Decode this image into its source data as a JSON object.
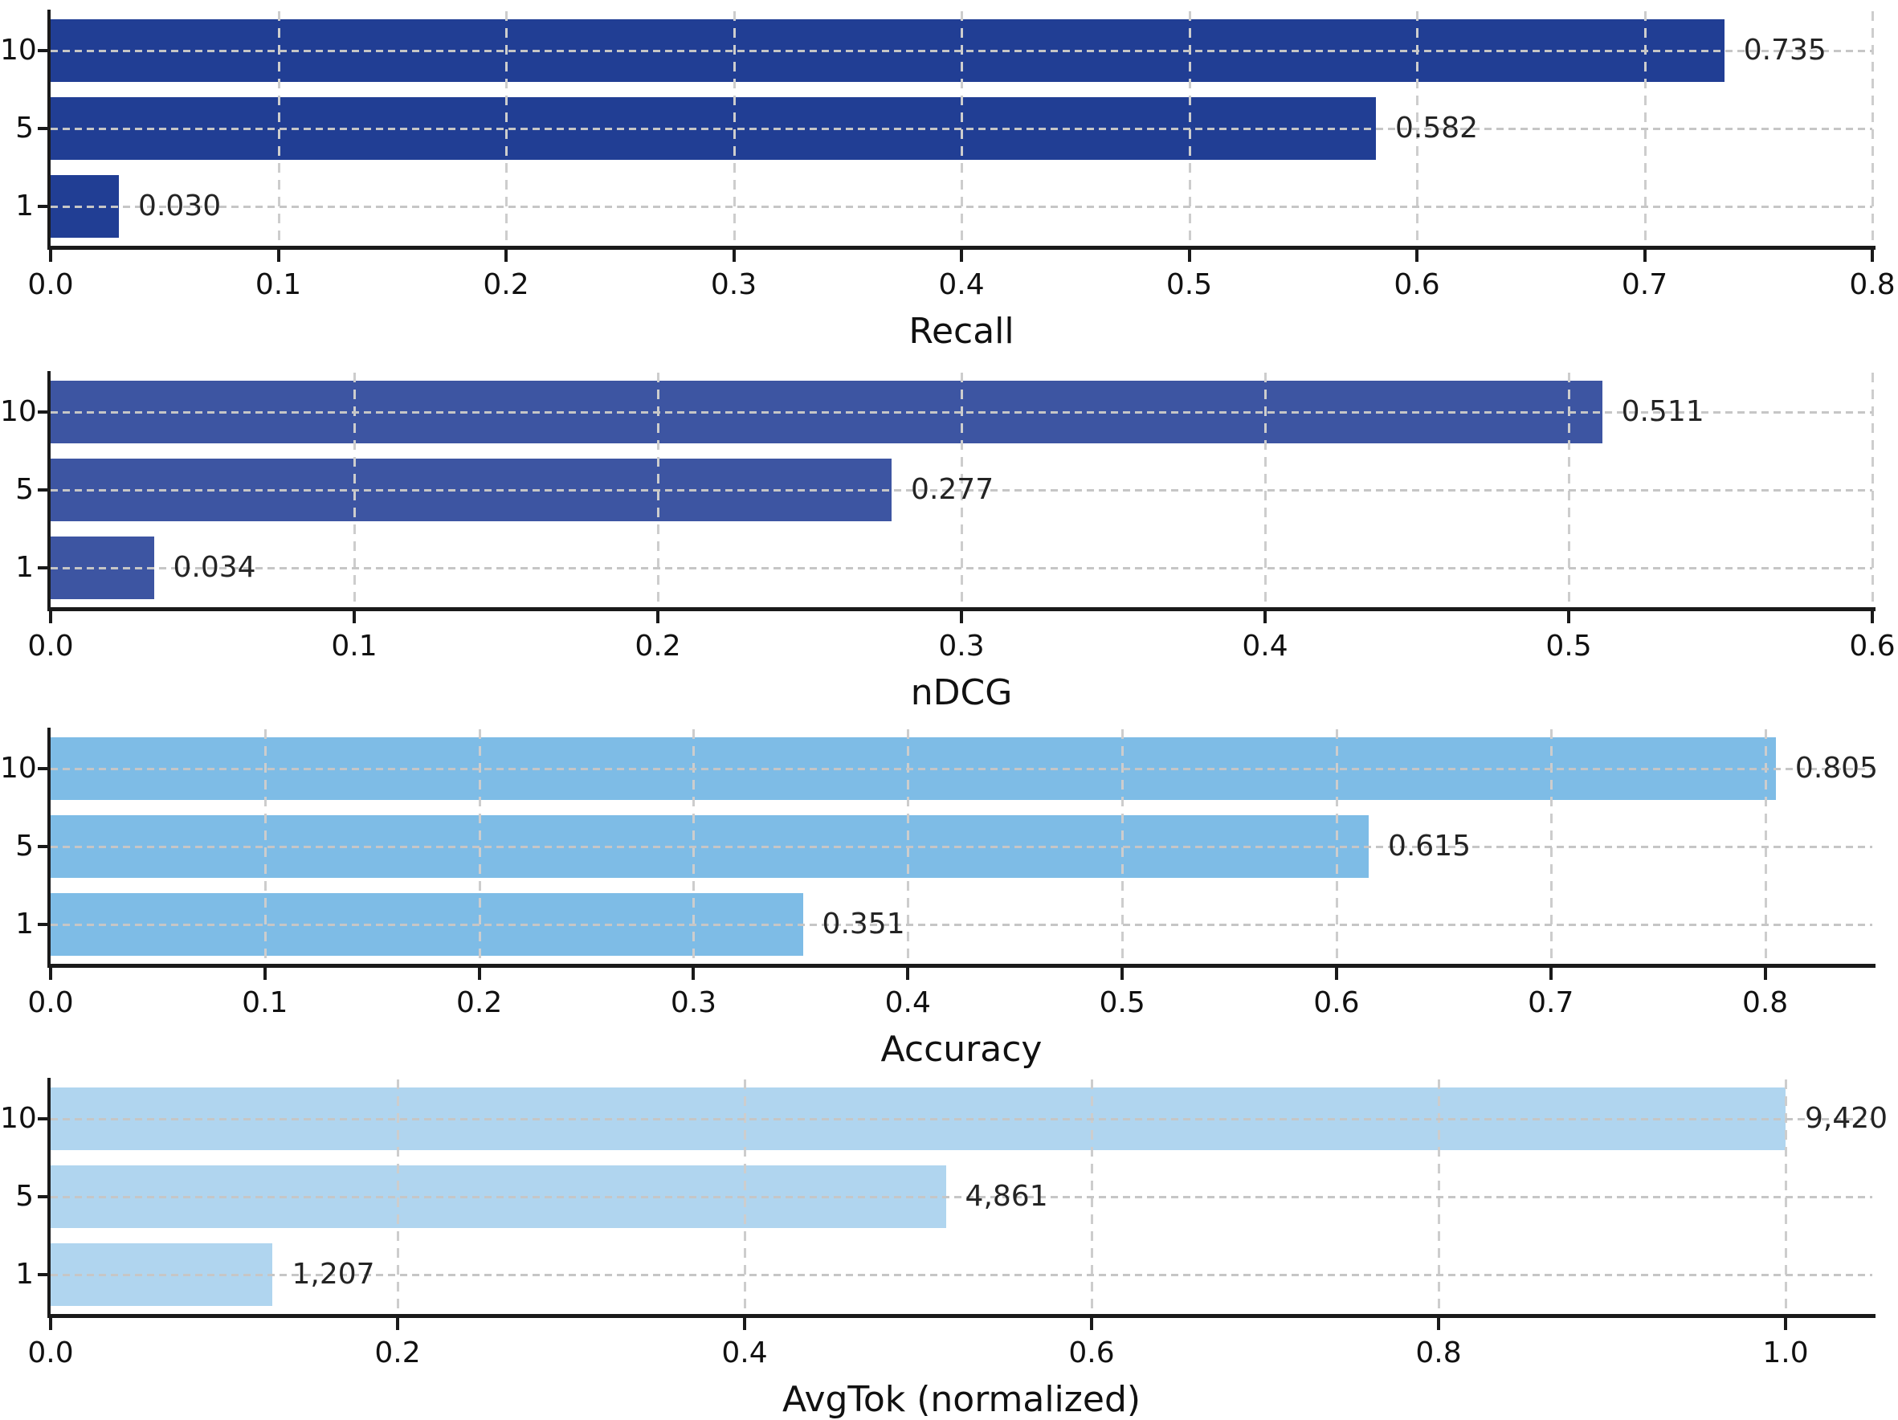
{
  "figure": {
    "background": "#ffffff"
  },
  "chart_data": [
    {
      "type": "bar",
      "orientation": "horizontal",
      "xlabel": "Recall",
      "categories": [
        "10",
        "5",
        "1"
      ],
      "values": [
        0.735,
        0.582,
        0.03
      ],
      "value_labels": [
        "0.735",
        "0.582",
        "0.030"
      ],
      "xlim": [
        0,
        0.8
      ],
      "xticks": [
        0,
        0.1,
        0.2,
        0.3,
        0.4,
        0.5,
        0.6,
        0.7,
        0.8
      ],
      "xtick_labels": [
        "0.0",
        "0.1",
        "0.2",
        "0.3",
        "0.4",
        "0.5",
        "0.6",
        "0.7",
        "0.8"
      ],
      "grid": true,
      "legend": null,
      "bar_color": "#213e94"
    },
    {
      "type": "bar",
      "orientation": "horizontal",
      "xlabel": "nDCG",
      "categories": [
        "10",
        "5",
        "1"
      ],
      "values": [
        0.511,
        0.277,
        0.034
      ],
      "value_labels": [
        "0.511",
        "0.277",
        "0.034"
      ],
      "xlim": [
        0,
        0.6
      ],
      "xticks": [
        0,
        0.1,
        0.2,
        0.3,
        0.4,
        0.5,
        0.6
      ],
      "xtick_labels": [
        "0.0",
        "0.1",
        "0.2",
        "0.3",
        "0.4",
        "0.5",
        "0.6"
      ],
      "grid": true,
      "legend": null,
      "bar_color": "#3d55a2"
    },
    {
      "type": "bar",
      "orientation": "horizontal",
      "xlabel": "Accuracy",
      "categories": [
        "10",
        "5",
        "1"
      ],
      "values": [
        0.805,
        0.615,
        0.351
      ],
      "value_labels": [
        "0.805",
        "0.615",
        "0.351"
      ],
      "xlim": [
        0,
        0.85
      ],
      "xticks": [
        0,
        0.1,
        0.2,
        0.3,
        0.4,
        0.5,
        0.6,
        0.7,
        0.8
      ],
      "xtick_labels": [
        "0.0",
        "0.1",
        "0.2",
        "0.3",
        "0.4",
        "0.5",
        "0.6",
        "0.7",
        "0.8"
      ],
      "grid": true,
      "legend": null,
      "bar_color": "#7ebce6"
    },
    {
      "type": "bar",
      "orientation": "horizontal",
      "xlabel": "AvgTok (normalized)",
      "categories": [
        "10",
        "5",
        "1"
      ],
      "values": [
        9420,
        4861,
        1207
      ],
      "plot_values": [
        1.0,
        0.516,
        0.128
      ],
      "value_labels": [
        "9,420",
        "4,861",
        "1,207"
      ],
      "xlim": [
        0,
        1.05
      ],
      "xticks": [
        0,
        0.2,
        0.4,
        0.6,
        0.8,
        1.0
      ],
      "xtick_labels": [
        "0.0",
        "0.2",
        "0.4",
        "0.6",
        "0.8",
        "1.0"
      ],
      "grid": true,
      "legend": null,
      "bar_color": "#b0d5ef"
    }
  ]
}
